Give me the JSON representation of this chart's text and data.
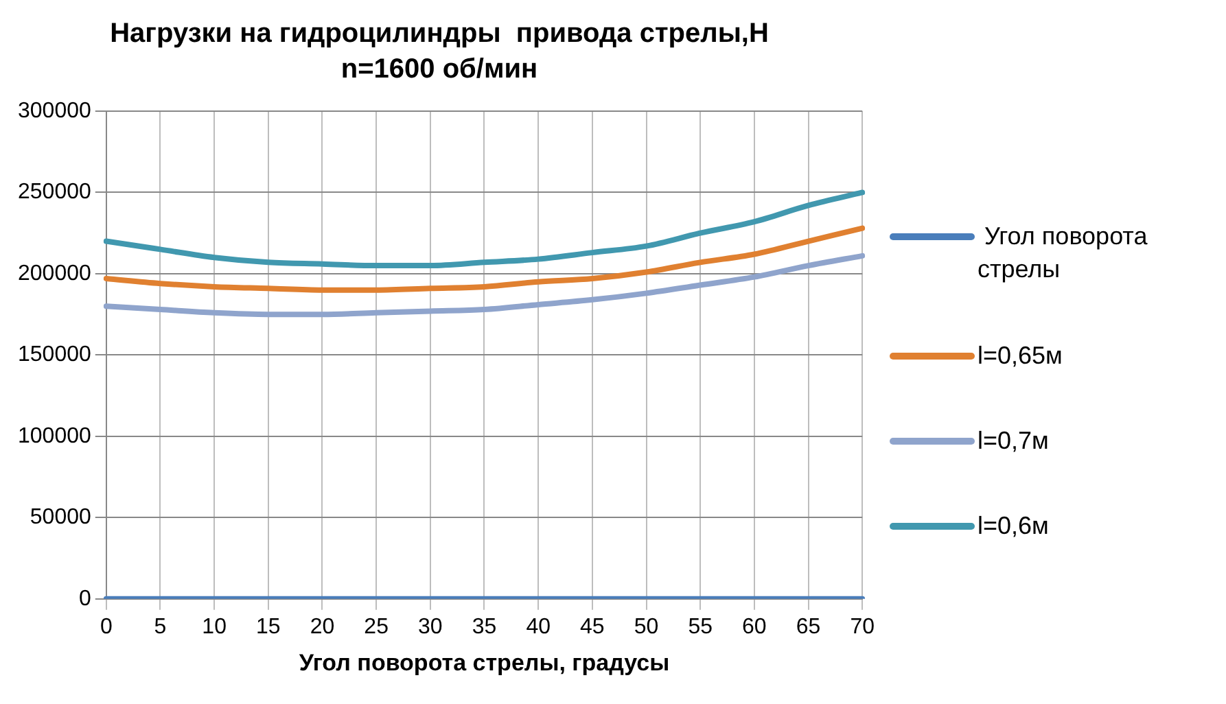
{
  "chart_data": {
    "type": "line",
    "title": "Нагрузки на гидроцилиндры  привода стрелы,Н",
    "subtitle": "n=1600 об/мин",
    "xlabel": "Угол поворота стрелы, градусы",
    "categories": [
      "0",
      "5",
      "10",
      "15",
      "20",
      "25",
      "30",
      "35",
      "40",
      "45",
      "50",
      "55",
      "60",
      "65",
      "70"
    ],
    "series": [
      {
        "name": " Угол поворота стрелы",
        "color": "#4a7ebb",
        "values": [
          0,
          0,
          0,
          0,
          0,
          0,
          0,
          0,
          0,
          0,
          0,
          0,
          0,
          0,
          0
        ]
      },
      {
        "name": "l=0,65м",
        "color": "#e08030",
        "values": [
          197000,
          194000,
          192000,
          191000,
          190000,
          190000,
          191000,
          192000,
          195000,
          197000,
          201000,
          207000,
          212000,
          220000,
          228000
        ]
      },
      {
        "name": "l=0,7м",
        "color": "#8fa4cc",
        "values": [
          180000,
          178000,
          176000,
          175000,
          175000,
          176000,
          177000,
          178000,
          181000,
          184000,
          188000,
          193000,
          198000,
          205000,
          211000
        ]
      },
      {
        "name": "l=0,6м",
        "color": "#4198af",
        "values": [
          220000,
          215000,
          210000,
          207000,
          206000,
          205000,
          205000,
          207000,
          209000,
          213000,
          217000,
          225000,
          232000,
          242000,
          250000
        ]
      }
    ],
    "ylim": [
      0,
      300000
    ],
    "yticks": [
      0,
      50000,
      100000,
      150000,
      200000,
      250000,
      300000
    ],
    "grid": true,
    "legend": "right",
    "marker": "none",
    "line_style": "solid"
  }
}
